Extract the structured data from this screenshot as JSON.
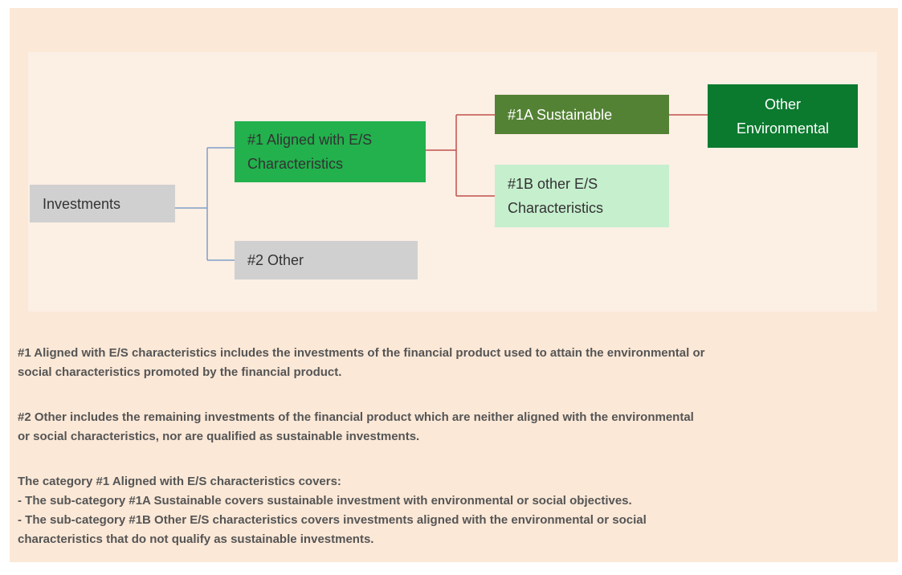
{
  "nodes": [
    {
      "lines": [
        "Investments"
      ]
    },
    {
      "lines": [
        "#1 Aligned with E/S",
        "Characteristics"
      ]
    },
    {
      "lines": [
        "#2 Other"
      ]
    },
    {
      "lines": [
        "#1A Sustainable"
      ]
    },
    {
      "lines": [
        "#1B other E/S",
        "Characteristics"
      ]
    },
    {
      "lines": [
        "Other",
        "Environmental"
      ]
    }
  ],
  "notes": [
    [
      "#1 Aligned with E/S characteristics includes the investments of the financial product used to attain the environmental or",
      "social characteristics promoted by the financial product."
    ],
    [
      "#2 Other includes the remaining investments of the financial product which are neither aligned with the environmental",
      "or social characteristics, nor are qualified as sustainable investments."
    ],
    [
      "The category #1 Aligned with E/S characteristics covers:",
      "- The sub-category #1A Sustainable covers sustainable investment with environmental or social objectives.",
      "- The sub-category #1B Other E/S characteristics covers investments aligned with the environmental or social",
      "characteristics that do not qualify as sustainable investments."
    ]
  ]
}
